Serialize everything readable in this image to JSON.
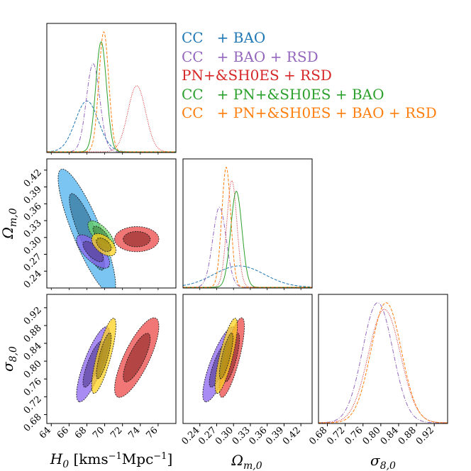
{
  "chart_data": {
    "type": "corner-plot",
    "parameters": [
      {
        "symbol": "H",
        "sub": "0",
        "unit": "[kms",
        "unit_sup": "−1",
        "unit_end": "Mpc",
        "unit_end_sup": "−1",
        "close": "]",
        "range": [
          63.5,
          78
        ],
        "ticks": [
          64,
          66,
          68,
          70,
          72,
          74,
          76
        ],
        "tick_labels": [
          "64",
          "66",
          "68",
          "70",
          "72",
          "74",
          "76"
        ]
      },
      {
        "symbol": "Ω",
        "sub": "m,0",
        "range": [
          0.21,
          0.44
        ],
        "ticks": [
          0.24,
          0.27,
          0.3,
          0.33,
          0.36,
          0.39,
          0.42
        ],
        "tick_labels": [
          "0.24",
          "0.27",
          "0.30",
          "0.33",
          "0.36",
          "0.39",
          "0.42"
        ]
      },
      {
        "symbol": "σ",
        "sub": "8,0",
        "range": [
          0.66,
          0.95
        ],
        "ticks": [
          0.68,
          0.72,
          0.76,
          0.8,
          0.84,
          0.88,
          0.92
        ],
        "tick_labels": [
          "0.68",
          "0.72",
          "0.76",
          "0.80",
          "0.84",
          "0.88",
          "0.92"
        ]
      }
    ],
    "series": [
      {
        "name": "CC   + BAO",
        "color": "#1f77b4",
        "dash": "4,2",
        "H0": [
          68.0,
          1.3
        ],
        "Om": [
          0.31,
          0.045
        ],
        "s8": null,
        "corr_H0_Om": -0.85,
        "fill": "#4fb2ee"
      },
      {
        "name": "CC   + BAO + RSD",
        "color": "#9467bd",
        "dash": "6,2,1,2",
        "H0": [
          68.7,
          0.75
        ],
        "Om": [
          0.275,
          0.012
        ],
        "s8": [
          0.793,
          0.034
        ],
        "corr_H0_Om": -0.7,
        "corr_Om_s8": 0.8,
        "fill": "#8b66f0"
      },
      {
        "name": "PN+&SH0ES + RSD",
        "color": "#d62728",
        "dash": "1,1.5",
        "H0": [
          73.6,
          1.0
        ],
        "Om": [
          0.297,
          0.009
        ],
        "s8": [
          0.808,
          0.036
        ],
        "corr_H0_Om": 0.0,
        "corr_Om_s8": 0.78,
        "fill": "#ec4848"
      },
      {
        "name": "CC   + PN+&SH0ES + BAO",
        "color": "#2ca02c",
        "dash": "",
        "H0": [
          69.6,
          0.6
        ],
        "Om": [
          0.305,
          0.01
        ],
        "s8": null,
        "corr_H0_Om": -0.7,
        "fill": "#6fd86a"
      },
      {
        "name": "CC   + PN+&SH0ES + BAO + RSD",
        "color": "#ff7f0e",
        "dash": "4,2",
        "H0": [
          69.9,
          0.55
        ],
        "Om": [
          0.287,
          0.008
        ],
        "s8": [
          0.812,
          0.034
        ],
        "corr_H0_Om": -0.5,
        "corr_Om_s8": 0.8,
        "fill": "#ffd21f"
      }
    ]
  }
}
